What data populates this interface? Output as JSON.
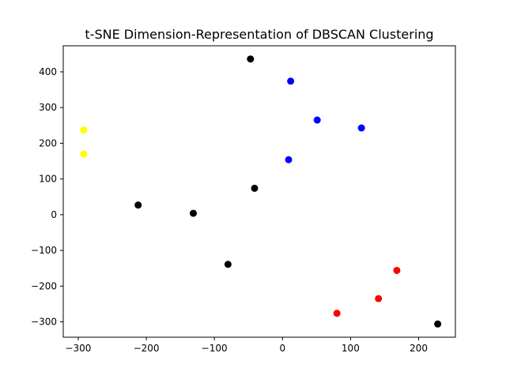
{
  "chart_data": {
    "type": "scatter",
    "title": "t-SNE Dimension-Representation of DBSCAN Clustering",
    "xlabel": "",
    "ylabel": "",
    "xlim": [
      -322,
      254
    ],
    "ylim": [
      -343,
      473
    ],
    "xticks": [
      -300,
      -200,
      -100,
      0,
      100,
      200
    ],
    "xtick_labels": [
      "−300",
      "−200",
      "−100",
      "0",
      "100",
      "200"
    ],
    "yticks": [
      -300,
      -200,
      -100,
      0,
      100,
      200,
      300,
      400
    ],
    "ytick_labels": [
      "−300",
      "−200",
      "−100",
      "0",
      "100",
      "200",
      "300",
      "400"
    ],
    "grid": false,
    "legend": "none",
    "points": [
      {
        "x": -47,
        "y": 436,
        "color": "#000000"
      },
      {
        "x": 12,
        "y": 374,
        "color": "#0000ff"
      },
      {
        "x": 51,
        "y": 265,
        "color": "#0000ff"
      },
      {
        "x": 116,
        "y": 243,
        "color": "#0000ff"
      },
      {
        "x": 9,
        "y": 154,
        "color": "#0000ff"
      },
      {
        "x": -292,
        "y": 237,
        "color": "#ffff00"
      },
      {
        "x": -292,
        "y": 170,
        "color": "#ffff00"
      },
      {
        "x": -41,
        "y": 74,
        "color": "#000000"
      },
      {
        "x": -212,
        "y": 27,
        "color": "#000000"
      },
      {
        "x": -131,
        "y": 4,
        "color": "#000000"
      },
      {
        "x": -80,
        "y": -139,
        "color": "#000000"
      },
      {
        "x": 168,
        "y": -156,
        "color": "#ff0000"
      },
      {
        "x": 141,
        "y": -235,
        "color": "#ff0000"
      },
      {
        "x": 80,
        "y": -276,
        "color": "#ff0000"
      },
      {
        "x": 228,
        "y": -306,
        "color": "#000000"
      }
    ]
  }
}
